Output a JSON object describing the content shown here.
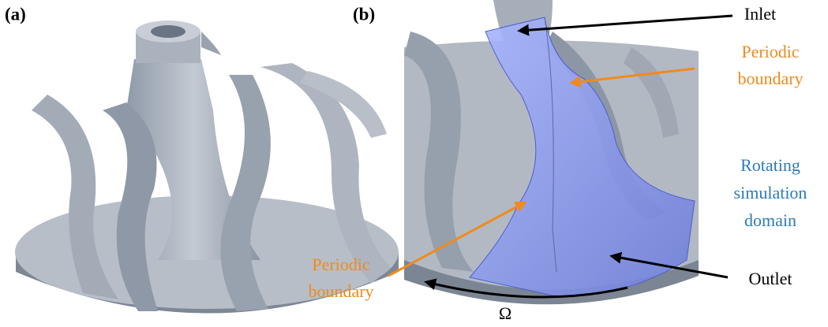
{
  "panel_labels": [
    "(a)",
    "(b)"
  ],
  "annotations": {
    "inlet": "Inlet",
    "periodic_boundary_top": [
      "Periodic",
      "boundary"
    ],
    "rotating_domain": [
      "Rotating",
      "simulation",
      "domain"
    ],
    "outlet": "Outlet",
    "periodic_boundary_bottom": [
      "Periodic",
      "boundary"
    ],
    "rotation": "Ω"
  }
}
